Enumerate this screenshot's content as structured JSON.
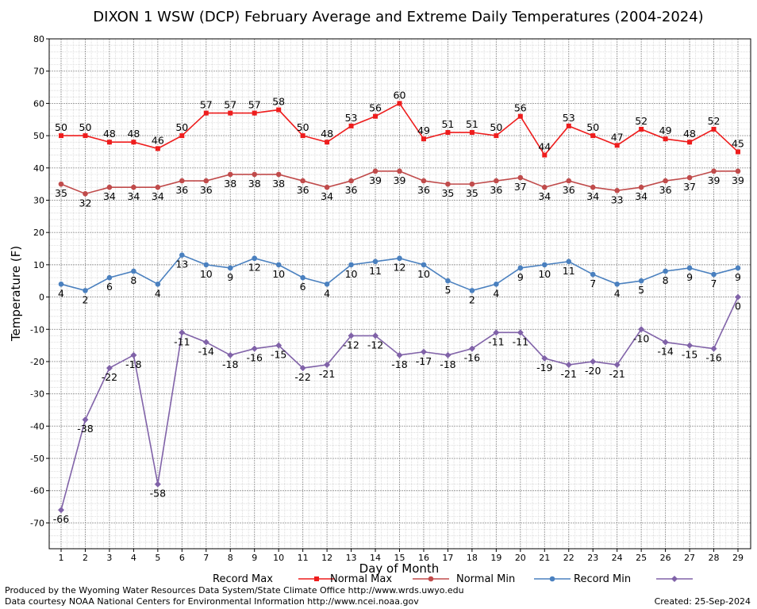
{
  "footer": {
    "produced_by": "Produced by the Wyoming Water Resources Data System/State Climate Office http://www.wrds.uwyo.edu",
    "courtesy": "Data courtesy NOAA National Centers for Environmental Information http://www.ncei.noaa.gov",
    "created": "Created:  25-Sep-2024"
  },
  "chart_data": {
    "type": "line",
    "title": "DIXON 1 WSW (DCP) February Average and Extreme Daily Temperatures (2004-2024)",
    "xlabel": "Day of Month",
    "ylabel": "Temperature (F)",
    "ylim": [
      -78,
      80
    ],
    "yticks": [
      80,
      70,
      60,
      50,
      40,
      30,
      20,
      10,
      0,
      -10,
      -20,
      -30,
      -40,
      -50,
      -60,
      -70
    ],
    "x": [
      1,
      2,
      3,
      4,
      5,
      6,
      7,
      8,
      9,
      10,
      11,
      12,
      13,
      14,
      15,
      16,
      17,
      18,
      19,
      20,
      21,
      22,
      23,
      24,
      25,
      26,
      27,
      28,
      29
    ],
    "grid": true,
    "legend_position": "bottom",
    "series": [
      {
        "name": "Record Max",
        "color": "#ee1c1c",
        "marker": "square",
        "values": [
          50,
          50,
          48,
          48,
          46,
          50,
          57,
          57,
          57,
          58,
          50,
          48,
          53,
          56,
          60,
          49,
          51,
          51,
          50,
          56,
          44,
          53,
          50,
          47,
          52,
          49,
          48,
          52,
          45
        ]
      },
      {
        "name": "Normal Max",
        "color": "#c04b4b",
        "marker": "circle",
        "values": [
          35,
          32,
          34,
          34,
          34,
          36,
          36,
          38,
          38,
          38,
          36,
          34,
          36,
          39,
          39,
          36,
          35,
          35,
          36,
          37,
          34,
          36,
          34,
          33,
          34,
          36,
          37,
          39,
          39
        ]
      },
      {
        "name": "Normal Min",
        "color": "#4a80bf",
        "marker": "circle",
        "values": [
          4,
          2,
          6,
          8,
          4,
          13,
          10,
          9,
          12,
          10,
          6,
          4,
          10,
          11,
          12,
          10,
          5,
          2,
          4,
          9,
          10,
          11,
          7,
          4,
          5,
          8,
          9,
          7,
          9
        ]
      },
      {
        "name": "Record Min",
        "color": "#8062a8",
        "marker": "diamond",
        "values": [
          -66,
          -38,
          -22,
          -18,
          -58,
          -11,
          -14,
          -18,
          -16,
          -15,
          -22,
          -21,
          -12,
          -12,
          -18,
          -17,
          -18,
          -16,
          -11,
          -11,
          -19,
          -21,
          -20,
          -21,
          -10,
          -14,
          -15,
          -16,
          0
        ]
      }
    ]
  }
}
